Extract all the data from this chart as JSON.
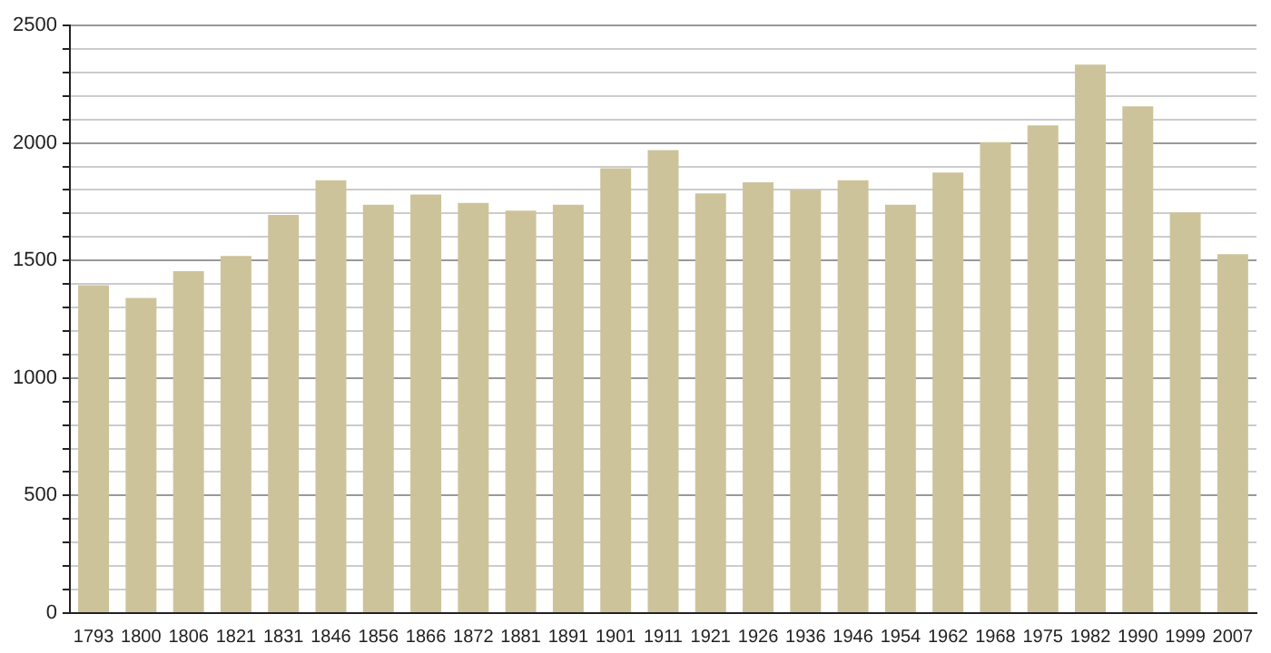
{
  "chart_data": {
    "type": "bar",
    "categories": [
      "1793",
      "1800",
      "1806",
      "1821",
      "1831",
      "1846",
      "1856",
      "1866",
      "1872",
      "1881",
      "1891",
      "1901",
      "1911",
      "1921",
      "1926",
      "1936",
      "1946",
      "1954",
      "1962",
      "1968",
      "1975",
      "1982",
      "1990",
      "1999",
      "2007"
    ],
    "values": [
      1395,
      1341,
      1454,
      1519,
      1694,
      1841,
      1737,
      1780,
      1745,
      1712,
      1737,
      1892,
      1970,
      1785,
      1833,
      1801,
      1841,
      1737,
      1874,
      2003,
      2075,
      2333,
      2156,
      1704,
      1527
    ],
    "color": "#cdc39b",
    "ylim": [
      0,
      2500
    ],
    "yticks": [
      0,
      {
        "value": 100,
        "label": null
      },
      {
        "value": 200,
        "label": null
      },
      {
        "value": 300,
        "label": null
      },
      {
        "value": 400,
        "label": null
      },
      500,
      {
        "value": 600,
        "label": null
      },
      {
        "value": 700,
        "label": null
      },
      {
        "value": 800,
        "label": null
      },
      {
        "value": 900,
        "label": null
      },
      1000,
      {
        "value": 1100,
        "label": null
      },
      {
        "value": 1200,
        "label": null
      },
      {
        "value": 1300,
        "label": null
      },
      {
        "value": 1400,
        "label": null
      },
      1500,
      {
        "value": 1600,
        "label": null
      },
      {
        "value": 1700,
        "label": null
      },
      {
        "value": 1800,
        "label": null
      },
      {
        "value": 1900,
        "label": null
      },
      2000,
      {
        "value": 2100,
        "label": null
      },
      {
        "value": 2200,
        "label": null
      },
      {
        "value": 2300,
        "label": null
      },
      {
        "value": 2400,
        "label": null
      },
      2500
    ],
    "grid": "y",
    "legend": false
  }
}
